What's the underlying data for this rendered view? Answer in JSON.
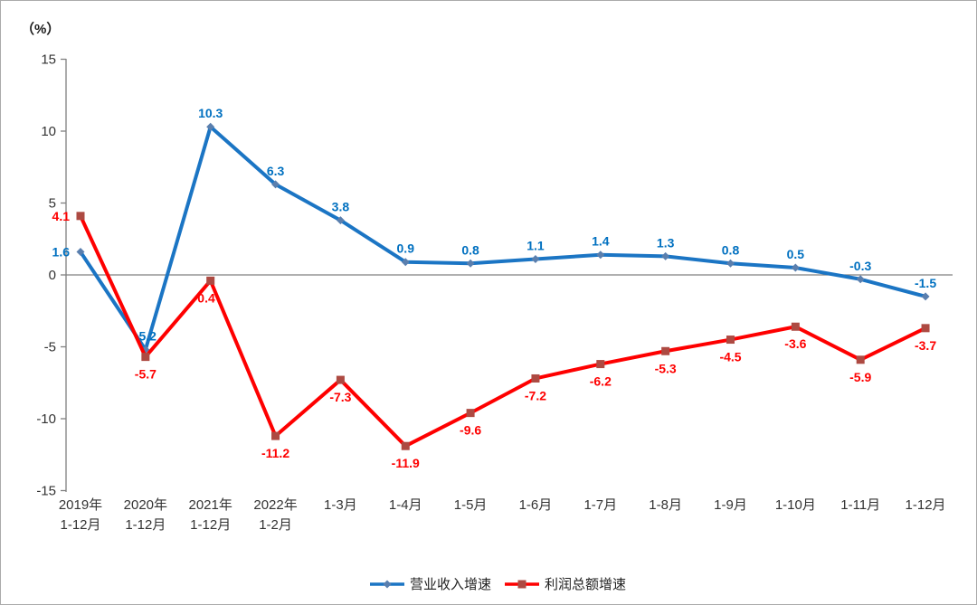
{
  "page": {
    "unit_label": "（%）"
  },
  "chart_data": {
    "type": "line",
    "title": "",
    "xlabel": "",
    "ylabel": "（%）",
    "ylim": [
      -15,
      15
    ],
    "yticks": [
      15,
      10,
      5,
      0,
      -5,
      -10,
      -15
    ],
    "grid": "zero-baseline-only",
    "legend_position": "bottom-center",
    "categories": [
      [
        "2019年",
        "1-12月"
      ],
      [
        "2020年",
        "1-12月"
      ],
      [
        "2021年",
        "1-12月"
      ],
      [
        "2022年",
        "1-2月"
      ],
      [
        "1-3月"
      ],
      [
        "1-4月"
      ],
      [
        "1-5月"
      ],
      [
        "1-6月"
      ],
      [
        "1-7月"
      ],
      [
        "1-8月"
      ],
      [
        "1-9月"
      ],
      [
        "1-10月"
      ],
      [
        "1-11月"
      ],
      [
        "1-12月"
      ]
    ],
    "series": [
      {
        "name": "营业收入增速",
        "line_color": "#1b75c4",
        "label_color": "#0070c0",
        "marker": "diamond",
        "marker_color": "#5a7fae",
        "values": [
          1.6,
          -5.2,
          10.3,
          6.3,
          3.8,
          0.9,
          0.8,
          1.1,
          1.4,
          1.3,
          0.8,
          0.5,
          -0.3,
          -1.5
        ]
      },
      {
        "name": "利润总额增速",
        "line_color": "#fe0000",
        "label_color": "#fe0000",
        "marker": "square",
        "marker_color": "#ad4a42",
        "values": [
          4.1,
          -5.7,
          -0.4,
          -11.2,
          -7.3,
          -11.9,
          -9.6,
          -7.2,
          -6.2,
          -5.3,
          -4.5,
          -3.6,
          -5.9,
          -3.7
        ]
      }
    ],
    "axis_color": "#808080"
  }
}
